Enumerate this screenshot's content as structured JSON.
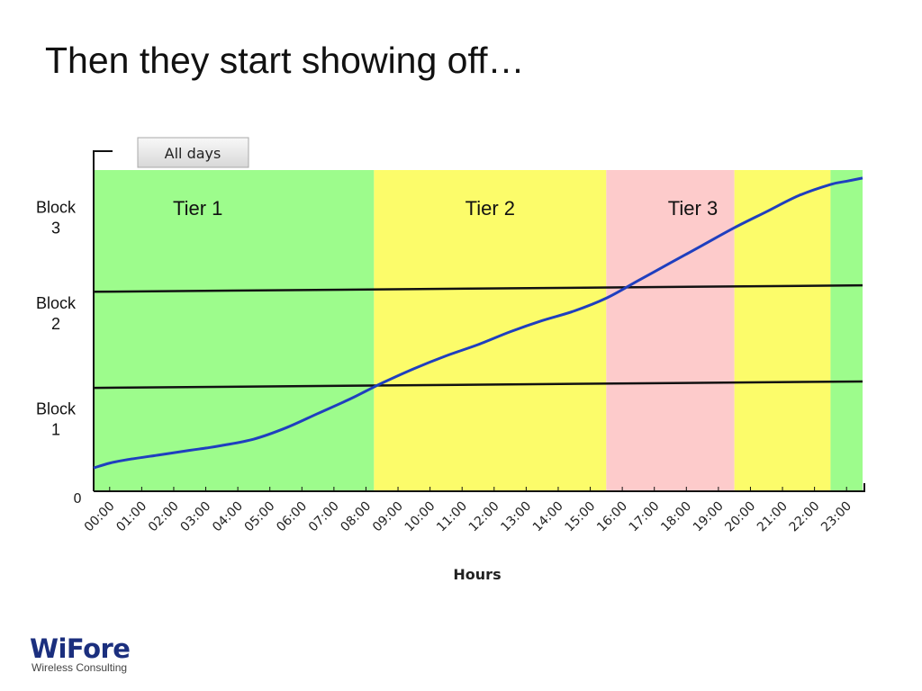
{
  "slide": {
    "title": "Then they start showing off…"
  },
  "logo": {
    "name": "WiFore",
    "tagline": "Wireless Consulting"
  },
  "chart_data": {
    "type": "line",
    "button_label": "All days",
    "xlabel": "Hours",
    "ylabel": "",
    "y_origin_label": "0",
    "x_ticks": [
      "00:00",
      "01:00",
      "02:00",
      "03:00",
      "04:00",
      "05:00",
      "06:00",
      "07:00",
      "08:00",
      "09:00",
      "10:00",
      "11:00",
      "12:00",
      "13:00",
      "14:00",
      "15:00",
      "16:00",
      "17:00",
      "18:00",
      "19:00",
      "20:00",
      "21:00",
      "22:00",
      "23:00"
    ],
    "xlim": [
      0,
      24
    ],
    "ylim": [
      0,
      100
    ],
    "tiers": [
      {
        "label": "Tier 1",
        "start": 0,
        "end": 8.75,
        "color": "#9dfc8c"
      },
      {
        "label": "Tier 2",
        "start": 8.75,
        "end": 16,
        "color": "#fcfc6a"
      },
      {
        "label": "Tier 3",
        "start": 16,
        "end": 20,
        "color": "#fdcbcb"
      },
      {
        "label": "",
        "start": 20,
        "end": 23,
        "color": "#fcfc6a"
      },
      {
        "label": "",
        "start": 23,
        "end": 24,
        "color": "#9dfc8c"
      }
    ],
    "blocks": [
      {
        "label": "Block\n3",
        "y": 85
      },
      {
        "label": "Block\n2",
        "y": 55
      },
      {
        "label": "Block\n1",
        "y": 22
      }
    ],
    "thresholds": [
      {
        "y_start": 62,
        "y_end": 64
      },
      {
        "y_start": 32,
        "y_end": 34
      }
    ],
    "series": [
      {
        "color": "#1f3fbf",
        "x": [
          0,
          0.5,
          1,
          2,
          3,
          3.5,
          4,
          5,
          6,
          7,
          8,
          8.5,
          9,
          10,
          11,
          12,
          13,
          14,
          15,
          16,
          17,
          18,
          19,
          20,
          21,
          22,
          23,
          23.5,
          24
        ],
        "y": [
          7,
          8.5,
          9.5,
          11,
          12.5,
          13.2,
          14,
          16,
          19.5,
          24,
          28.5,
          31,
          33.5,
          38,
          42,
          45.5,
          49.5,
          53,
          56,
          60,
          65.5,
          71,
          76.5,
          82,
          87,
          92,
          95.5,
          96.5,
          97.5
        ]
      }
    ]
  }
}
